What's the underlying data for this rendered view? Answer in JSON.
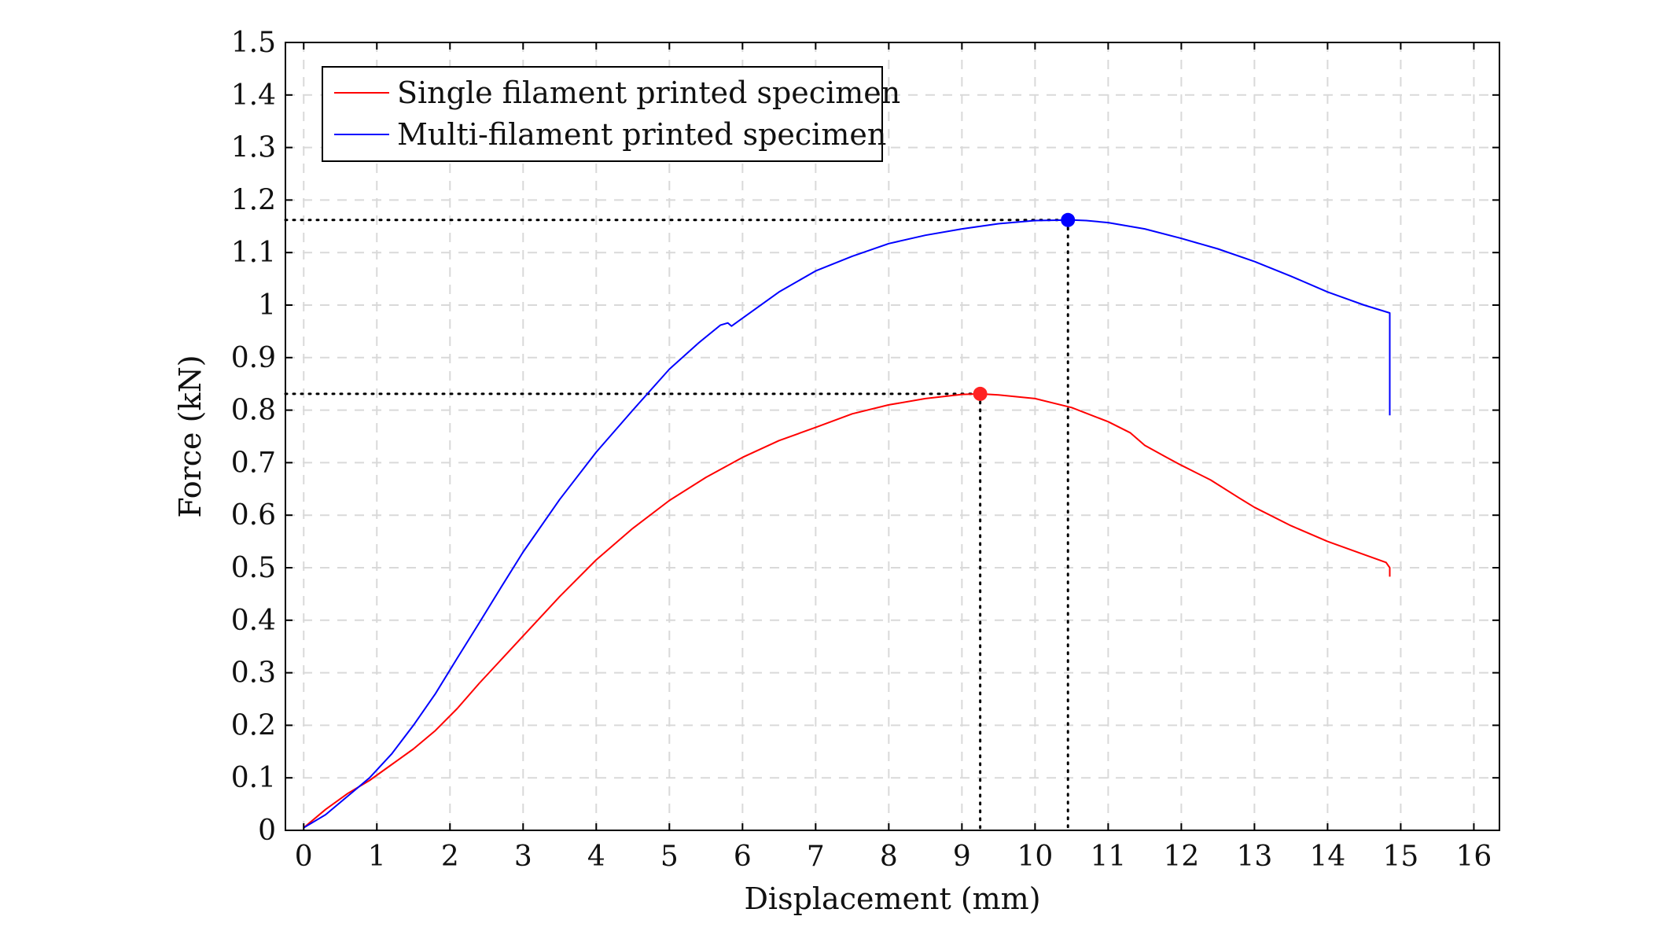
{
  "chart_data": {
    "type": "line",
    "title": "",
    "xlabel": "Displacement (mm)",
    "ylabel": "Force (kN)",
    "xlim": [
      -0.25,
      16.35
    ],
    "ylim": [
      0,
      1.5
    ],
    "grid": true,
    "legend_position": "top-left",
    "x_ticks": [
      "0",
      "1",
      "2",
      "3",
      "4",
      "5",
      "6",
      "7",
      "8",
      "9",
      "10",
      "11",
      "12",
      "13",
      "14",
      "15",
      "16"
    ],
    "y_ticks": [
      "0",
      "0.1",
      "0.2",
      "0.3",
      "0.4",
      "0.5",
      "0.6",
      "0.7",
      "0.8",
      "0.9",
      "1",
      "1.1",
      "1.2",
      "1.3",
      "1.4",
      "1.5"
    ],
    "series": [
      {
        "name": "Single filament printed specimen",
        "color": "#ff0000",
        "x": [
          0,
          0.3,
          0.6,
          0.9,
          1.2,
          1.5,
          1.8,
          2.1,
          2.4,
          2.7,
          3.0,
          3.5,
          4.0,
          4.5,
          5.0,
          5.5,
          6.0,
          6.5,
          7.0,
          7.5,
          8.0,
          8.5,
          9.0,
          9.25,
          9.5,
          10.0,
          10.5,
          11.0,
          11.3,
          11.5,
          11.8,
          12.0,
          12.4,
          12.8,
          13.0,
          13.5,
          14.0,
          14.5,
          14.8,
          14.85,
          14.85
        ],
        "y": [
          0.005,
          0.04,
          0.07,
          0.095,
          0.125,
          0.155,
          0.19,
          0.232,
          0.28,
          0.325,
          0.37,
          0.445,
          0.515,
          0.575,
          0.628,
          0.672,
          0.71,
          0.742,
          0.767,
          0.793,
          0.81,
          0.822,
          0.83,
          0.831,
          0.829,
          0.822,
          0.805,
          0.778,
          0.757,
          0.733,
          0.71,
          0.695,
          0.667,
          0.632,
          0.615,
          0.58,
          0.55,
          0.525,
          0.51,
          0.5,
          0.483
        ]
      },
      {
        "name": "Multi-filament printed specimen",
        "color": "#0000ff",
        "x": [
          0,
          0.3,
          0.6,
          0.9,
          1.2,
          1.5,
          1.8,
          2.1,
          2.4,
          2.7,
          3.0,
          3.5,
          4.0,
          4.5,
          5.0,
          5.4,
          5.7,
          5.8,
          5.85,
          6.0,
          6.5,
          7.0,
          7.5,
          8.0,
          8.5,
          9.0,
          9.5,
          10.0,
          10.5,
          10.7,
          11.0,
          11.5,
          12.0,
          12.5,
          13.0,
          13.5,
          14.0,
          14.5,
          14.85,
          14.85
        ],
        "y": [
          0.005,
          0.03,
          0.065,
          0.1,
          0.145,
          0.2,
          0.26,
          0.328,
          0.395,
          0.463,
          0.53,
          0.63,
          0.72,
          0.8,
          0.878,
          0.928,
          0.962,
          0.966,
          0.96,
          0.975,
          1.025,
          1.065,
          1.093,
          1.117,
          1.133,
          1.145,
          1.155,
          1.161,
          1.162,
          1.161,
          1.157,
          1.145,
          1.127,
          1.107,
          1.083,
          1.055,
          1.025,
          1.0,
          0.985,
          0.79
        ]
      }
    ],
    "markers": [
      {
        "series": "Single filament printed specimen",
        "x": 9.25,
        "y": 0.831,
        "color": "#ff2222"
      },
      {
        "series": "Multi-filament printed specimen",
        "x": 10.45,
        "y": 1.162,
        "color": "#0000ff"
      }
    ]
  }
}
